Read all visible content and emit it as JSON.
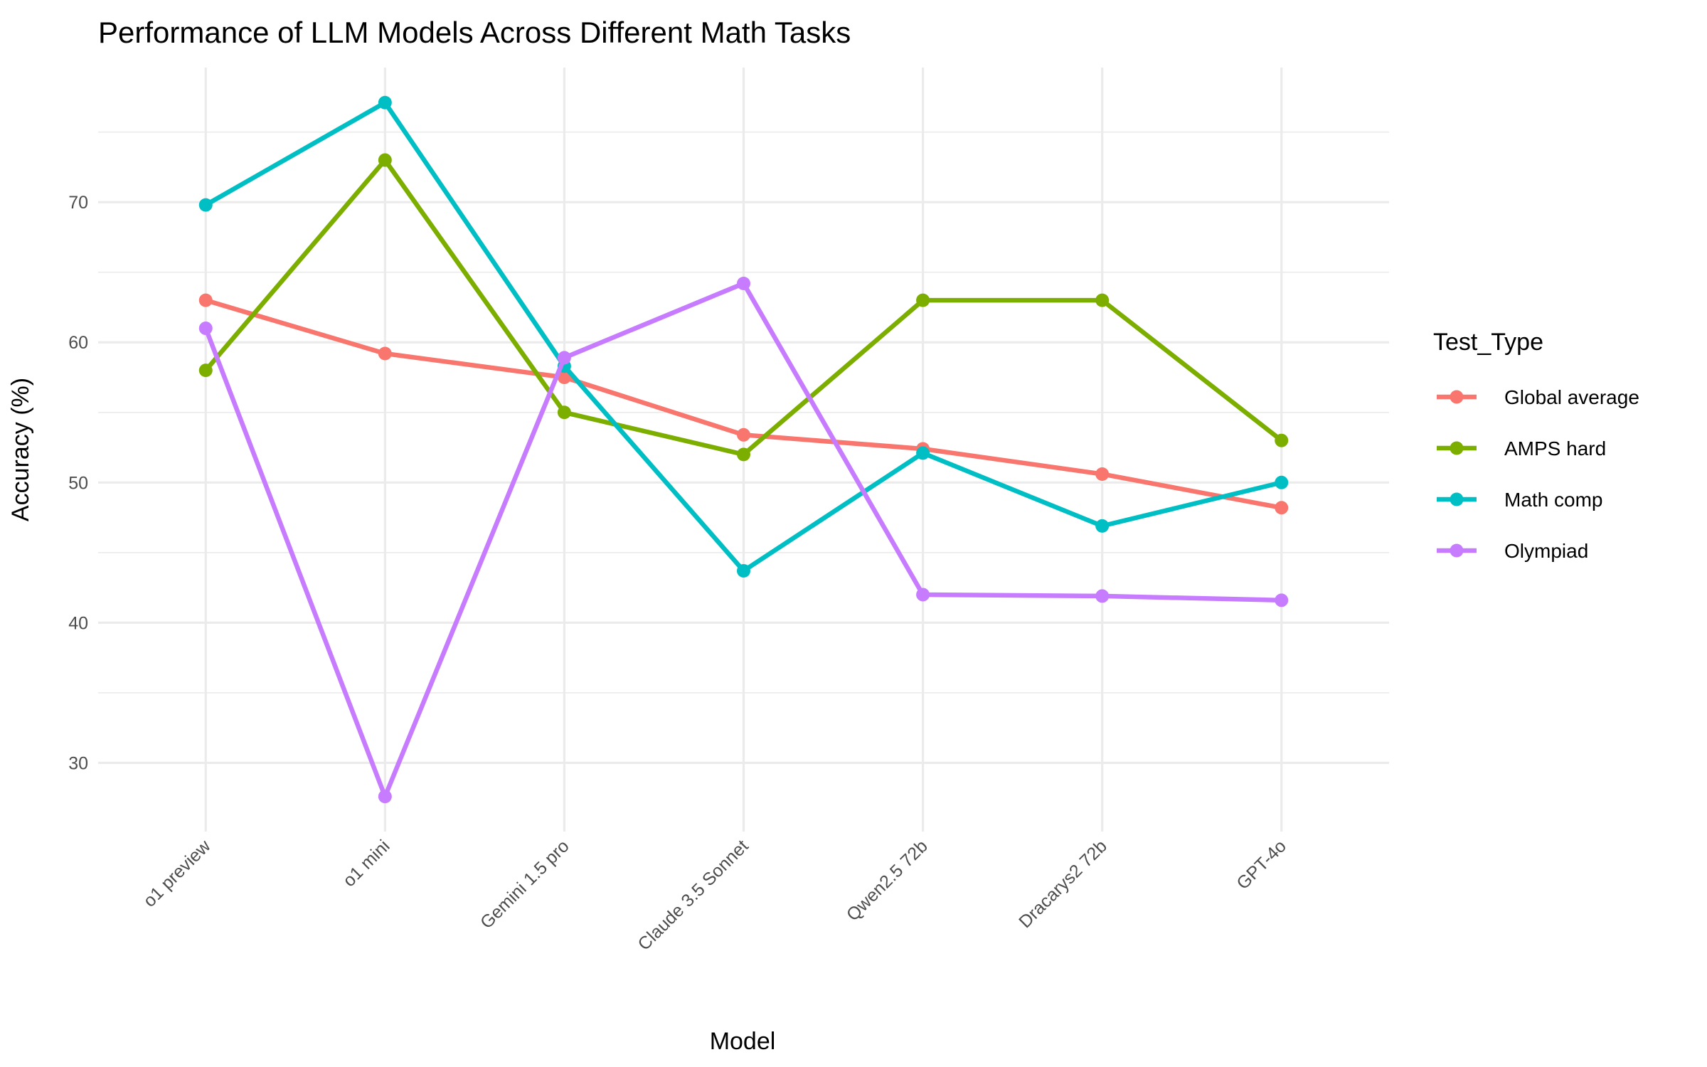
{
  "chart_data": {
    "type": "line",
    "title": "Performance of LLM Models Across Different Math Tasks",
    "xlabel": "Model",
    "ylabel": "Accuracy (%)",
    "categories": [
      "o1 preview",
      "o1 mini",
      "Gemini 1.5 pro",
      "Claude 3.5 Sonnet",
      "Qwen2.5 72b",
      "Dracarys2 72b",
      "GPT-4o"
    ],
    "ylim": [
      25.1,
      79.6
    ],
    "yticks": [
      30,
      40,
      50,
      60,
      70
    ],
    "grid": true,
    "legend": {
      "title": "Test_Type",
      "position": "right"
    },
    "series": [
      {
        "name": "Global average",
        "color": "#F8766D",
        "values": [
          63.0,
          59.2,
          57.5,
          53.4,
          52.4,
          50.6,
          48.2
        ]
      },
      {
        "name": "AMPS hard",
        "color": "#7CAE00",
        "values": [
          58,
          73,
          55,
          52,
          63,
          63,
          53
        ]
      },
      {
        "name": "Math comp",
        "color": "#00BFC4",
        "values": [
          69.8,
          77.1,
          58.3,
          43.7,
          52.1,
          46.9,
          50.0
        ]
      },
      {
        "name": "Olympiad",
        "color": "#C77CFF",
        "values": [
          61.0,
          27.6,
          58.9,
          64.2,
          42.0,
          41.9,
          41.6
        ]
      }
    ]
  }
}
